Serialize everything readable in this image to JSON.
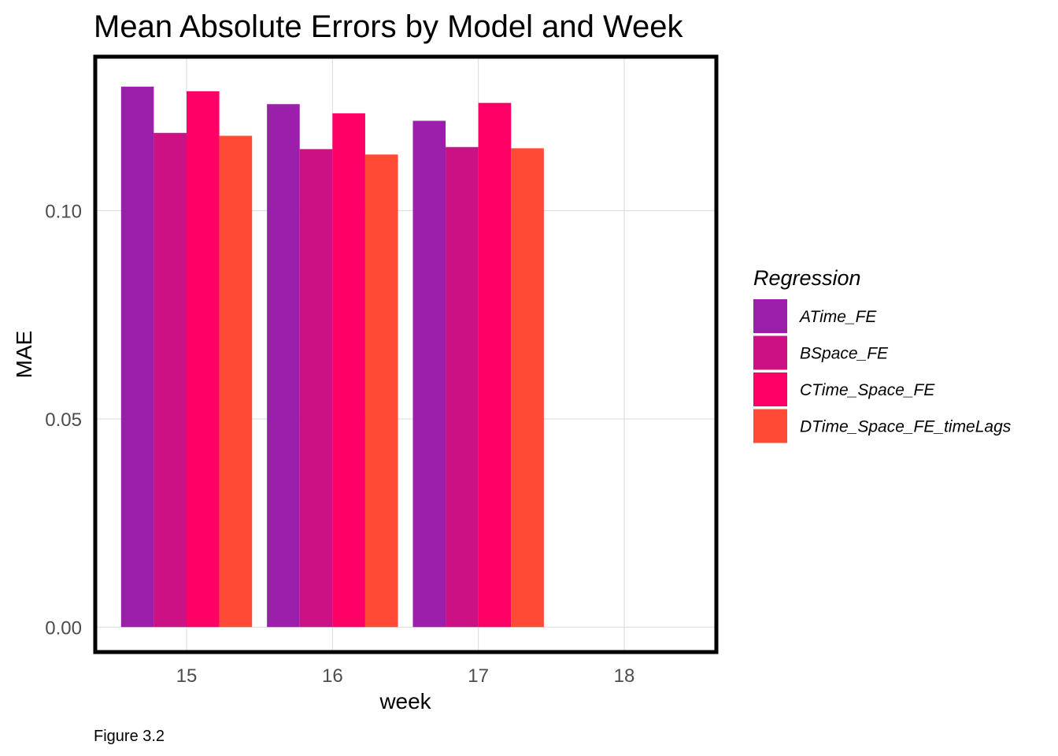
{
  "chart_data": {
    "type": "bar",
    "title": "Mean Absolute Errors by Model and Week",
    "xlabel": "week",
    "ylabel": "MAE",
    "caption": "Figure 3.2",
    "legend_title": "Regression",
    "legend_position": "right",
    "grid": true,
    "panel_border": true,
    "categories": [
      "15",
      "16",
      "17",
      "18"
    ],
    "ylim": [
      -0.006,
      0.137
    ],
    "y_ticks": [
      0.0,
      0.05,
      0.1
    ],
    "y_tick_labels": [
      "0.00",
      "0.05",
      "0.10"
    ],
    "series": [
      {
        "name": "ATime_FE",
        "color": "#9b1fab",
        "values": [
          0.1298,
          0.1256,
          0.1216,
          null
        ]
      },
      {
        "name": "BSpace_FE",
        "color": "#cc1185",
        "values": [
          0.1187,
          0.1148,
          0.1153,
          null
        ]
      },
      {
        "name": "CTime_Space_FE",
        "color": "#ff0066",
        "values": [
          0.1287,
          0.1234,
          0.1259,
          null
        ]
      },
      {
        "name": "DTime_Space_FE_timeLags",
        "color": "#ff4a36",
        "values": [
          0.118,
          0.1135,
          0.115,
          null
        ]
      }
    ]
  }
}
